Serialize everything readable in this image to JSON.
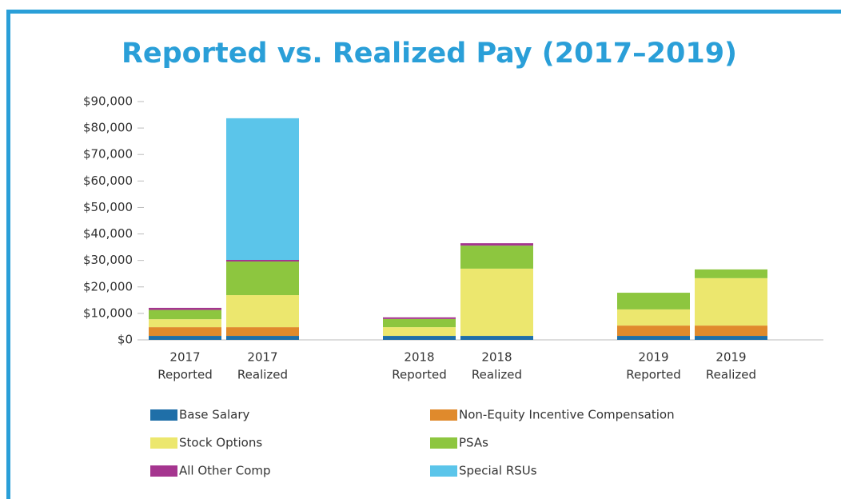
{
  "chart_data": {
    "type": "stacked_bar",
    "title": "Reported vs. Realized Pay (2017–2019)",
    "categories": [
      [
        "2017",
        "Reported"
      ],
      [
        "2017",
        "Realized"
      ],
      [
        "2018",
        "Reported"
      ],
      [
        "2018",
        "Realized"
      ],
      [
        "2019",
        "Reported"
      ],
      [
        "2019",
        "Realized"
      ]
    ],
    "series": [
      {
        "name": "Base Salary",
        "color": "#1f6fa8",
        "values": [
          1500,
          1500,
          1500,
          1500,
          1500,
          1500
        ]
      },
      {
        "name": "Non-Equity Incentive Compensation",
        "color": "#e08a2c",
        "values": [
          3300,
          3300,
          0,
          0,
          3900,
          3900
        ]
      },
      {
        "name": "Stock Options",
        "color": "#ece76e",
        "values": [
          3000,
          12100,
          3300,
          25400,
          6100,
          17900
        ]
      },
      {
        "name": "PSAs",
        "color": "#8dc63f",
        "values": [
          3500,
          12700,
          3100,
          8700,
          6300,
          3300
        ]
      },
      {
        "name": "All Other Comp",
        "color": "#a5358f",
        "values": [
          800,
          600,
          600,
          900,
          0,
          0
        ]
      },
      {
        "name": "Special RSUs",
        "color": "#5bc5ea",
        "values": [
          0,
          53500,
          0,
          0,
          0,
          0
        ]
      }
    ],
    "ylim": [
      0,
      90000
    ],
    "yticks": [
      {
        "value": 0,
        "label": "$0"
      },
      {
        "value": 10000,
        "label": "$10,000"
      },
      {
        "value": 20000,
        "label": "$20,000"
      },
      {
        "value": 30000,
        "label": "$30,000"
      },
      {
        "value": 40000,
        "label": "$40,000"
      },
      {
        "value": 50000,
        "label": "$50,000"
      },
      {
        "value": 60000,
        "label": "$60,000"
      },
      {
        "value": 70000,
        "label": "$70,000"
      },
      {
        "value": 80000,
        "label": "$80,000"
      },
      {
        "value": 90000,
        "label": "$90,000"
      }
    ]
  }
}
